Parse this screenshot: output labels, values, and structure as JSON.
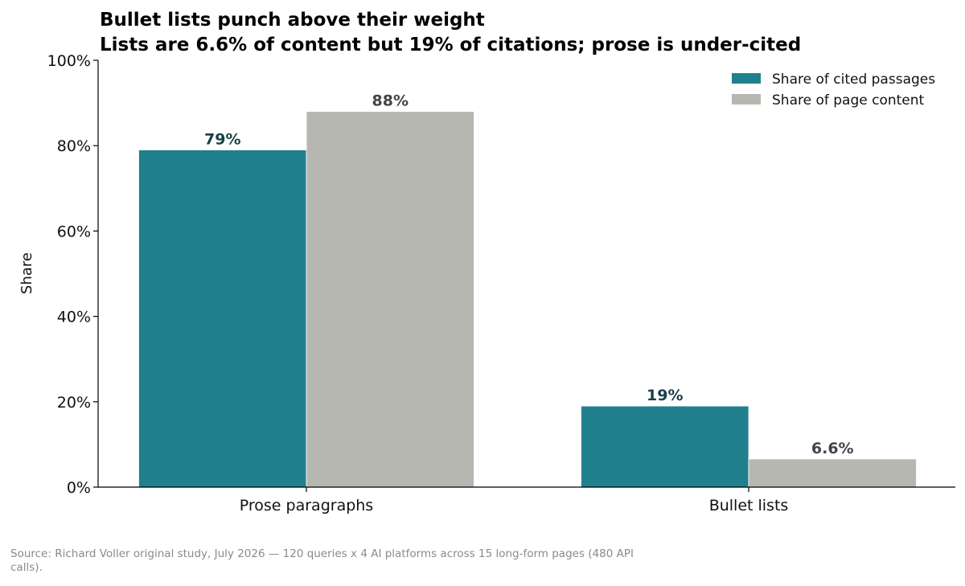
{
  "chart_data": {
    "type": "bar",
    "title": "Bullet lists punch above their weight",
    "subtitle": "Lists are 6.6% of content but 19% of citations; prose is under-cited",
    "ylabel": "Share",
    "xlabel": "",
    "ylim": [
      0,
      100
    ],
    "yticks": [
      "0%",
      "20%",
      "40%",
      "60%",
      "80%",
      "100%"
    ],
    "ytick_values": [
      0,
      20,
      40,
      60,
      80,
      100
    ],
    "categories": [
      "Prose paragraphs",
      "Bullet lists"
    ],
    "series": [
      {
        "name": "Share of cited passages",
        "color": "#21808d",
        "label_color": "#1a3f46",
        "values": [
          79,
          19
        ],
        "labels": [
          "79%",
          "19%"
        ]
      },
      {
        "name": "Share of page content",
        "color": "#b7b7b2",
        "label_color": "#444444",
        "values": [
          88,
          6.6
        ],
        "labels": [
          "88%",
          "6.6%"
        ]
      }
    ],
    "legend_position": "top-right",
    "grid": false
  },
  "footer": {
    "source": "Source: Richard Voller original study, July 2026 — 120 queries x 4 AI platforms across 15 long-form pages (480 API calls)."
  }
}
